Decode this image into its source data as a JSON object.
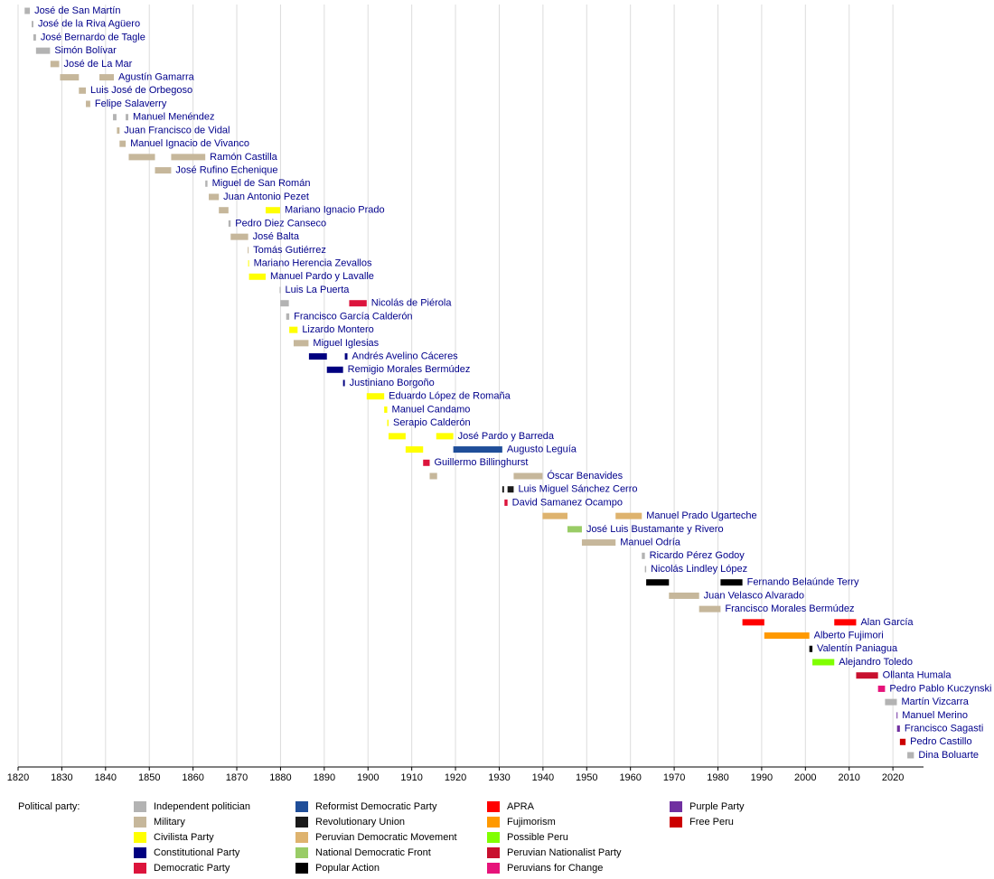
{
  "chart_data": {
    "type": "timeline",
    "xlim": [
      1820,
      2027
    ],
    "xticks": [
      1820,
      1830,
      1840,
      1850,
      1860,
      1870,
      1880,
      1890,
      1900,
      1910,
      1920,
      1930,
      1940,
      1950,
      1960,
      1970,
      1980,
      1990,
      2000,
      2010,
      2020
    ],
    "grid": true,
    "legend_title": "Political party:",
    "parties": [
      {
        "name": "Independent politician",
        "color": "#b3b3b3"
      },
      {
        "name": "Military",
        "color": "#c6b79b"
      },
      {
        "name": "Civilista Party",
        "color": "#ffff00"
      },
      {
        "name": "Constitutional Party",
        "color": "#000080"
      },
      {
        "name": "Democratic Party",
        "color": "#dc143c"
      },
      {
        "name": "Reformist Democratic Party",
        "color": "#1f4e99"
      },
      {
        "name": "Revolutionary Union",
        "color": "#1a1a1a"
      },
      {
        "name": "Peruvian Democratic Movement",
        "color": "#deb36e"
      },
      {
        "name": "National Democratic Front",
        "color": "#99cc66"
      },
      {
        "name": "Popular Action",
        "color": "#000000"
      },
      {
        "name": "APRA",
        "color": "#ff0000"
      },
      {
        "name": "Fujimorism",
        "color": "#ff9900"
      },
      {
        "name": "Possible Peru",
        "color": "#80ff00"
      },
      {
        "name": "Peruvian Nationalist Party",
        "color": "#c8102e"
      },
      {
        "name": "Peruvians for Change",
        "color": "#e6137a"
      },
      {
        "name": "Purple Party",
        "color": "#7030a0"
      },
      {
        "name": "Free Peru",
        "color": "#cc0000"
      }
    ],
    "rows": [
      {
        "name": "José de San Martín",
        "terms": [
          {
            "start": 1821.5,
            "end": 1822.7,
            "party": 0
          }
        ]
      },
      {
        "name": "José de la Riva Agüero",
        "terms": [
          {
            "start": 1823.1,
            "end": 1823.5,
            "party": 0
          }
        ]
      },
      {
        "name": "José Bernardo de Tagle",
        "terms": [
          {
            "start": 1823.5,
            "end": 1824.1,
            "party": 0
          }
        ]
      },
      {
        "name": "Simón Bolívar",
        "terms": [
          {
            "start": 1824.1,
            "end": 1827.3,
            "party": 0
          }
        ]
      },
      {
        "name": "José de La Mar",
        "terms": [
          {
            "start": 1827.4,
            "end": 1829.4,
            "party": 1
          }
        ]
      },
      {
        "name": "Agustín Gamarra",
        "terms": [
          {
            "start": 1829.6,
            "end": 1833.9,
            "party": 1
          },
          {
            "start": 1838.6,
            "end": 1841.9,
            "party": 1
          }
        ]
      },
      {
        "name": "Luis José de Orbegoso",
        "terms": [
          {
            "start": 1833.9,
            "end": 1835.5,
            "party": 1
          }
        ]
      },
      {
        "name": "Felipe Salaverry",
        "terms": [
          {
            "start": 1835.5,
            "end": 1836.5,
            "party": 1
          }
        ]
      },
      {
        "name": "Manuel Menéndez",
        "terms": [
          {
            "start": 1841.7,
            "end": 1842.5,
            "party": 0
          },
          {
            "start": 1844.6,
            "end": 1845.2,
            "party": 0
          }
        ]
      },
      {
        "name": "Juan Francisco de Vidal",
        "terms": [
          {
            "start": 1842.6,
            "end": 1843.2,
            "party": 1
          }
        ]
      },
      {
        "name": "Manuel Ignacio de Vivanco",
        "terms": [
          {
            "start": 1843.2,
            "end": 1844.6,
            "party": 1
          }
        ]
      },
      {
        "name": "Ramón Castilla",
        "terms": [
          {
            "start": 1845.3,
            "end": 1851.3,
            "party": 1
          },
          {
            "start": 1855.0,
            "end": 1862.8,
            "party": 1
          }
        ]
      },
      {
        "name": "José Rufino Echenique",
        "terms": [
          {
            "start": 1851.3,
            "end": 1855.0,
            "party": 1
          }
        ]
      },
      {
        "name": "Miguel de San Román",
        "terms": [
          {
            "start": 1862.8,
            "end": 1863.3,
            "party": 0
          }
        ]
      },
      {
        "name": "Juan Antonio Pezet",
        "terms": [
          {
            "start": 1863.6,
            "end": 1865.9,
            "party": 1
          }
        ]
      },
      {
        "name": "Mariano Ignacio Prado",
        "terms": [
          {
            "start": 1865.9,
            "end": 1868.1,
            "party": 1
          },
          {
            "start": 1876.6,
            "end": 1879.9,
            "party": 2
          }
        ]
      },
      {
        "name": "Pedro Diez Canseco",
        "terms": [
          {
            "start": 1868.1,
            "end": 1868.6,
            "party": 0
          }
        ]
      },
      {
        "name": "José Balta",
        "terms": [
          {
            "start": 1868.6,
            "end": 1872.6,
            "party": 1
          }
        ]
      },
      {
        "name": "Tomás Gutiérrez",
        "terms": [
          {
            "start": 1872.5,
            "end": 1872.7,
            "party": 1
          }
        ]
      },
      {
        "name": "Mariano Herencia Zevallos",
        "terms": [
          {
            "start": 1872.6,
            "end": 1872.8,
            "party": 2
          }
        ]
      },
      {
        "name": "Manuel Pardo y Lavalle",
        "terms": [
          {
            "start": 1872.8,
            "end": 1876.6,
            "party": 2
          }
        ]
      },
      {
        "name": "Luis La Puerta",
        "terms": [
          {
            "start": 1879.8,
            "end": 1879.95,
            "party": 0
          }
        ]
      },
      {
        "name": "Nicolás de Piérola",
        "terms": [
          {
            "start": 1879.95,
            "end": 1881.9,
            "party": 0
          },
          {
            "start": 1895.7,
            "end": 1899.7,
            "party": 4
          }
        ]
      },
      {
        "name": "Francisco García Calderón",
        "terms": [
          {
            "start": 1881.3,
            "end": 1882.0,
            "party": 0
          }
        ]
      },
      {
        "name": "Lizardo Montero",
        "terms": [
          {
            "start": 1882.0,
            "end": 1883.9,
            "party": 2
          }
        ]
      },
      {
        "name": "Miguel Iglesias",
        "terms": [
          {
            "start": 1883.0,
            "end": 1886.4,
            "party": 1
          }
        ]
      },
      {
        "name": "Andrés Avelino Cáceres",
        "terms": [
          {
            "start": 1886.5,
            "end": 1890.6,
            "party": 3
          },
          {
            "start": 1894.7,
            "end": 1895.3,
            "party": 3
          }
        ]
      },
      {
        "name": "Remigio Morales Bermúdez",
        "terms": [
          {
            "start": 1890.6,
            "end": 1894.3,
            "party": 3
          }
        ]
      },
      {
        "name": "Justiniano Borgoño",
        "terms": [
          {
            "start": 1894.3,
            "end": 1894.7,
            "party": 3
          }
        ]
      },
      {
        "name": "Eduardo López de Romaña",
        "terms": [
          {
            "start": 1899.7,
            "end": 1903.7,
            "party": 2
          }
        ]
      },
      {
        "name": "Manuel Candamo",
        "terms": [
          {
            "start": 1903.7,
            "end": 1904.4,
            "party": 2
          }
        ]
      },
      {
        "name": "Serapio Calderón",
        "terms": [
          {
            "start": 1904.4,
            "end": 1904.7,
            "party": 2
          }
        ]
      },
      {
        "name": "José Pardo y Barreda",
        "terms": [
          {
            "start": 1904.7,
            "end": 1908.6,
            "party": 2
          },
          {
            "start": 1915.6,
            "end": 1919.5,
            "party": 2
          }
        ]
      },
      {
        "name": "Augusto Leguía",
        "terms": [
          {
            "start": 1908.6,
            "end": 1912.6,
            "party": 2
          },
          {
            "start": 1919.5,
            "end": 1930.7,
            "party": 5
          }
        ]
      },
      {
        "name": "Guillermo Billinghurst",
        "terms": [
          {
            "start": 1912.6,
            "end": 1914.1,
            "party": 4
          }
        ]
      },
      {
        "name": "Óscar Benavides",
        "terms": [
          {
            "start": 1914.1,
            "end": 1915.8,
            "party": 1
          },
          {
            "start": 1933.3,
            "end": 1939.9,
            "party": 1
          }
        ]
      },
      {
        "name": "Luis Miguel Sánchez Cerro",
        "terms": [
          {
            "start": 1930.7,
            "end": 1931.1,
            "party": 6
          },
          {
            "start": 1931.9,
            "end": 1933.3,
            "party": 6
          }
        ]
      },
      {
        "name": "David Samanez Ocampo",
        "terms": [
          {
            "start": 1931.2,
            "end": 1931.9,
            "party": 4
          }
        ]
      },
      {
        "name": "Manuel Prado Ugarteche",
        "terms": [
          {
            "start": 1939.9,
            "end": 1945.6,
            "party": 7
          },
          {
            "start": 1956.6,
            "end": 1962.6,
            "party": 7
          }
        ]
      },
      {
        "name": "José Luis Bustamante y Rivero",
        "terms": [
          {
            "start": 1945.6,
            "end": 1948.9,
            "party": 8
          }
        ]
      },
      {
        "name": "Manuel Odría",
        "terms": [
          {
            "start": 1948.9,
            "end": 1956.6,
            "party": 1
          }
        ]
      },
      {
        "name": "Ricardo Pérez Godoy",
        "terms": [
          {
            "start": 1962.6,
            "end": 1963.3,
            "party": 0
          }
        ]
      },
      {
        "name": "Nicolás Lindley López",
        "terms": [
          {
            "start": 1963.3,
            "end": 1963.6,
            "party": 0
          }
        ]
      },
      {
        "name": "Fernando Belaúnde Terry",
        "terms": [
          {
            "start": 1963.6,
            "end": 1968.8,
            "party": 9
          },
          {
            "start": 1980.6,
            "end": 1985.6,
            "party": 9
          }
        ]
      },
      {
        "name": "Juan Velasco Alvarado",
        "terms": [
          {
            "start": 1968.8,
            "end": 1975.7,
            "party": 1
          }
        ]
      },
      {
        "name": "Francisco Morales Bermúdez",
        "terms": [
          {
            "start": 1975.7,
            "end": 1980.6,
            "party": 1
          }
        ]
      },
      {
        "name": "Alan García",
        "terms": [
          {
            "start": 1985.6,
            "end": 1990.6,
            "party": 10
          },
          {
            "start": 2006.6,
            "end": 2011.6,
            "party": 10
          }
        ]
      },
      {
        "name": "Alberto Fujimori",
        "terms": [
          {
            "start": 1990.6,
            "end": 2000.9,
            "party": 11
          }
        ]
      },
      {
        "name": "Valentín Paniagua",
        "terms": [
          {
            "start": 2000.9,
            "end": 2001.6,
            "party": 9
          }
        ]
      },
      {
        "name": "Alejandro Toledo",
        "terms": [
          {
            "start": 2001.6,
            "end": 2006.6,
            "party": 12
          }
        ]
      },
      {
        "name": "Ollanta Humala",
        "terms": [
          {
            "start": 2011.6,
            "end": 2016.6,
            "party": 13
          }
        ]
      },
      {
        "name": "Pedro Pablo Kuczynski",
        "terms": [
          {
            "start": 2016.6,
            "end": 2018.2,
            "party": 14
          }
        ]
      },
      {
        "name": "Martín Vizcarra",
        "terms": [
          {
            "start": 2018.2,
            "end": 2020.9,
            "party": 0
          }
        ]
      },
      {
        "name": "Manuel Merino",
        "terms": [
          {
            "start": 2020.85,
            "end": 2020.95,
            "party": 15
          }
        ]
      },
      {
        "name": "Francisco Sagasti",
        "terms": [
          {
            "start": 2020.95,
            "end": 2021.6,
            "party": 15
          }
        ]
      },
      {
        "name": "Pedro Castillo",
        "terms": [
          {
            "start": 2021.6,
            "end": 2022.9,
            "party": 16
          }
        ]
      },
      {
        "name": "Dina Boluarte",
        "terms": [
          {
            "start": 2023.3,
            "end": 2024.8,
            "party": 0
          }
        ]
      }
    ]
  }
}
